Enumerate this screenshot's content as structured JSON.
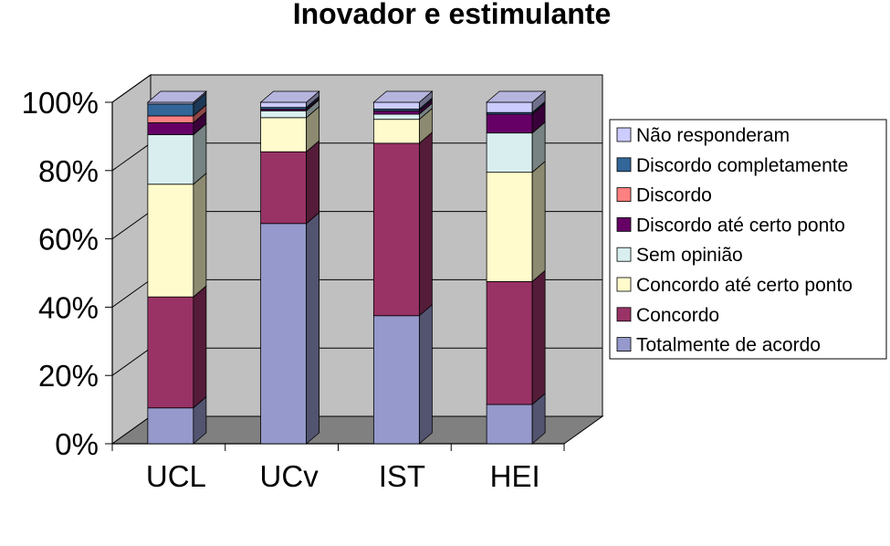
{
  "chart_data": {
    "type": "bar",
    "stacked": true,
    "percent": true,
    "three_d": true,
    "title": "Inovador e estimulante",
    "categories": [
      "UCL",
      "UCv",
      "IST",
      "HEI"
    ],
    "y_ticks": [
      "0%",
      "20%",
      "40%",
      "60%",
      "80%",
      "100%"
    ],
    "ylim": [
      0,
      100
    ],
    "grid": true,
    "legend_position": "right",
    "series": [
      {
        "name": "Totalmente de acordo",
        "color": "#9599CB",
        "values": [
          10.5,
          64.5,
          37.5,
          11.5
        ]
      },
      {
        "name": "Concordo",
        "color": "#993366",
        "values": [
          32.5,
          21,
          50.5,
          36
        ]
      },
      {
        "name": "Concordo até certo ponto",
        "color": "#FFFBCC",
        "values": [
          33,
          10,
          7,
          32
        ]
      },
      {
        "name": "Sem opinião",
        "color": "#D9EFEF",
        "values": [
          14.5,
          2,
          1.5,
          11.5
        ]
      },
      {
        "name": "Discordo até certo ponto",
        "color": "#660066",
        "values": [
          3.5,
          0.5,
          1,
          5.5
        ]
      },
      {
        "name": "Discordo",
        "color": "#FF8080",
        "values": [
          2,
          0,
          0,
          0
        ]
      },
      {
        "name": "Discordo completamente",
        "color": "#336699",
        "values": [
          3.5,
          0.5,
          0.5,
          0.5
        ]
      },
      {
        "name": "Não responderam",
        "color": "#CCCCFF",
        "values": [
          0.5,
          1.5,
          2,
          3
        ]
      }
    ]
  }
}
